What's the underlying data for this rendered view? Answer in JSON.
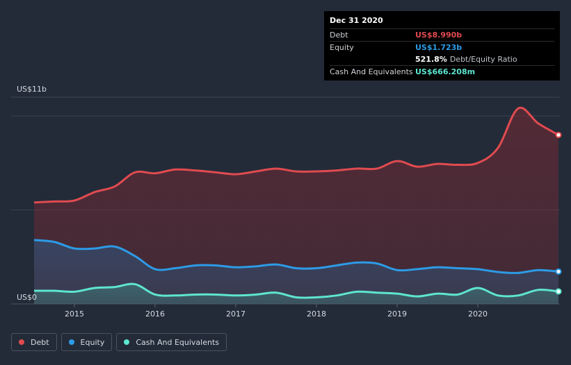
{
  "chart_data": {
    "type": "area",
    "title": "",
    "y_top_label": "US$11b",
    "y_zero_label": "US$0",
    "ylim": [
      0,
      11
    ],
    "xlim": [
      2014.5,
      2021.0
    ],
    "x_ticks": [
      "2015",
      "2016",
      "2017",
      "2018",
      "2019",
      "2020"
    ],
    "x_tick_values": [
      2015,
      2016,
      2017,
      2018,
      2019,
      2020
    ],
    "series": [
      {
        "name": "Debt",
        "color": "#e04b50",
        "x": [
          2014.5,
          2014.75,
          2015.0,
          2015.25,
          2015.5,
          2015.75,
          2016.0,
          2016.25,
          2016.5,
          2016.75,
          2017.0,
          2017.25,
          2017.5,
          2017.75,
          2018.0,
          2018.25,
          2018.5,
          2018.75,
          2019.0,
          2019.25,
          2019.5,
          2019.75,
          2020.0,
          2020.25,
          2020.5,
          2020.75,
          2021.0
        ],
        "values": [
          5.4,
          5.45,
          5.5,
          5.95,
          6.25,
          7.0,
          6.95,
          7.15,
          7.1,
          7.0,
          6.9,
          7.05,
          7.2,
          7.05,
          7.05,
          7.1,
          7.2,
          7.2,
          7.6,
          7.3,
          7.45,
          7.4,
          7.5,
          8.3,
          10.4,
          9.6,
          8.99
        ]
      },
      {
        "name": "Equity",
        "color": "#2d9be6",
        "x": [
          2014.5,
          2014.75,
          2015.0,
          2015.25,
          2015.5,
          2015.75,
          2016.0,
          2016.25,
          2016.5,
          2016.75,
          2017.0,
          2017.25,
          2017.5,
          2017.75,
          2018.0,
          2018.25,
          2018.5,
          2018.75,
          2019.0,
          2019.25,
          2019.5,
          2019.75,
          2020.0,
          2020.25,
          2020.5,
          2020.75,
          2021.0
        ],
        "values": [
          3.4,
          3.3,
          2.95,
          2.95,
          3.05,
          2.55,
          1.85,
          1.9,
          2.05,
          2.05,
          1.95,
          2.0,
          2.1,
          1.9,
          1.9,
          2.05,
          2.2,
          2.15,
          1.8,
          1.85,
          1.95,
          1.9,
          1.85,
          1.7,
          1.65,
          1.8,
          1.723
        ]
      },
      {
        "name": "Cash And Equivalents",
        "color": "#5ee6d0",
        "x": [
          2014.5,
          2014.75,
          2015.0,
          2015.25,
          2015.5,
          2015.75,
          2016.0,
          2016.25,
          2016.5,
          2016.75,
          2017.0,
          2017.25,
          2017.5,
          2017.75,
          2018.0,
          2018.25,
          2018.5,
          2018.75,
          2019.0,
          2019.25,
          2019.5,
          2019.75,
          2020.0,
          2020.25,
          2020.5,
          2020.75,
          2021.0
        ],
        "values": [
          0.7,
          0.7,
          0.65,
          0.85,
          0.9,
          1.05,
          0.5,
          0.45,
          0.5,
          0.5,
          0.45,
          0.5,
          0.6,
          0.35,
          0.35,
          0.45,
          0.65,
          0.6,
          0.55,
          0.4,
          0.55,
          0.5,
          0.85,
          0.45,
          0.45,
          0.75,
          0.666
        ]
      }
    ],
    "legend": [
      "Debt",
      "Equity",
      "Cash And Equivalents"
    ],
    "legend_position": "bottom-left"
  },
  "tooltip": {
    "date": "Dec 31 2020",
    "debt_label": "Debt",
    "debt_value": "US$8.990b",
    "equity_label": "Equity",
    "equity_value": "US$1.723b",
    "ratio_value": "521.8%",
    "ratio_label": "Debt/Equity Ratio",
    "cash_label": "Cash And Equivalents",
    "cash_value": "US$666.208m"
  },
  "colors": {
    "background": "#232b38",
    "debt": "#e04b50",
    "equity": "#2d9be6",
    "cash": "#5ee6d0"
  }
}
